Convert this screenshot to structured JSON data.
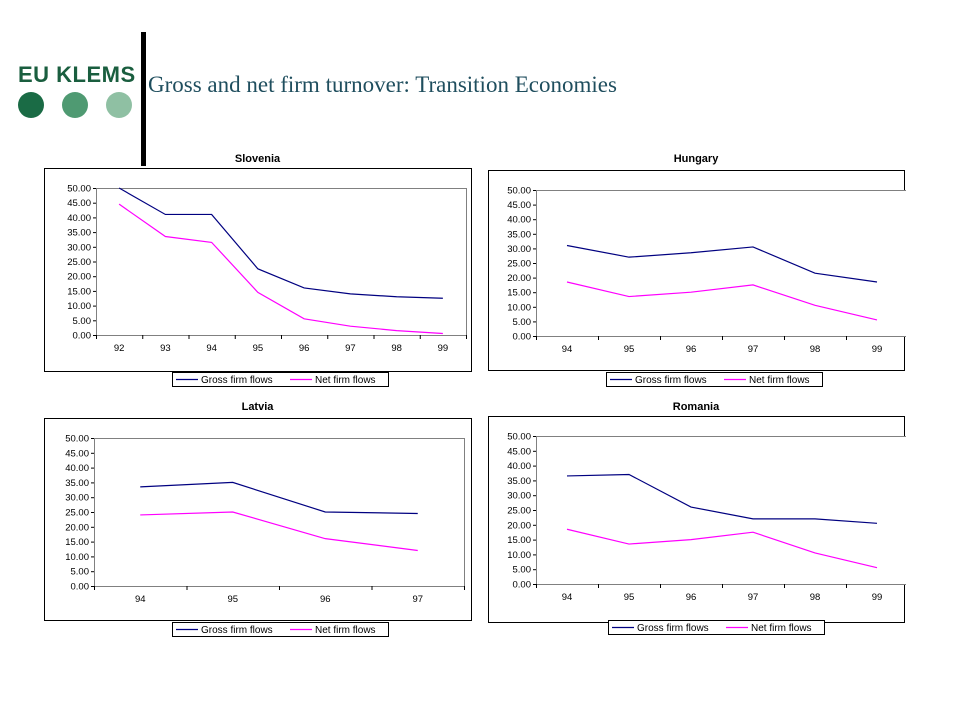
{
  "slide": {
    "title": "Gross and net firm turnover: Transition Economies"
  },
  "logo": {
    "text": "EU KLEMS",
    "colors": [
      "#1a6b45",
      "#4f9a72",
      "#8fc0a3"
    ]
  },
  "colors": {
    "gross": "#000080",
    "net": "#ff00ff",
    "title_text": "#1f4e5e"
  },
  "chart_data": [
    {
      "type": "line",
      "title": "Slovenia",
      "categories": [
        "92",
        "93",
        "94",
        "95",
        "96",
        "97",
        "98",
        "99"
      ],
      "ylim": [
        0,
        50
      ],
      "yticks": [
        "0.00",
        "5.00",
        "10.00",
        "15.00",
        "20.00",
        "25.00",
        "30.00",
        "35.00",
        "40.00",
        "45.00",
        "50.00"
      ],
      "legend_position": "bottom",
      "grid": false,
      "series": [
        {
          "name": "Gross firm flows",
          "values": [
            50,
            41,
            41,
            22.5,
            16,
            14,
            13,
            12.5
          ]
        },
        {
          "name": "Net firm flows",
          "values": [
            44.5,
            33.5,
            31.5,
            14.5,
            5.5,
            3,
            1.5,
            0.5
          ]
        }
      ]
    },
    {
      "type": "line",
      "title": "Hungary",
      "categories": [
        "94",
        "95",
        "96",
        "97",
        "98",
        "99"
      ],
      "ylim": [
        0,
        50
      ],
      "yticks": [
        "0.00",
        "5.00",
        "10.00",
        "15.00",
        "20.00",
        "25.00",
        "30.00",
        "35.00",
        "40.00",
        "45.00",
        "50.00"
      ],
      "legend_position": "bottom",
      "grid": false,
      "series": [
        {
          "name": "Gross firm flows",
          "values": [
            31,
            27,
            28.5,
            30.5,
            21.5,
            18.5
          ]
        },
        {
          "name": "Net firm flows",
          "values": [
            18.5,
            13.5,
            15,
            17.5,
            10.5,
            5.5
          ]
        }
      ]
    },
    {
      "type": "line",
      "title": "Latvia",
      "categories": [
        "94",
        "95",
        "96",
        "97"
      ],
      "ylim": [
        0,
        50
      ],
      "yticks": [
        "0.00",
        "5.00",
        "10.00",
        "15.00",
        "20.00",
        "25.00",
        "30.00",
        "35.00",
        "40.00",
        "45.00",
        "50.00"
      ],
      "legend_position": "bottom",
      "grid": false,
      "series": [
        {
          "name": "Gross firm flows",
          "values": [
            33.5,
            35,
            25,
            24.5
          ]
        },
        {
          "name": "Net firm flows",
          "values": [
            24,
            25,
            16,
            12
          ]
        }
      ]
    },
    {
      "type": "line",
      "title": "Romania",
      "categories": [
        "94",
        "95",
        "96",
        "97",
        "98",
        "99"
      ],
      "ylim": [
        0,
        50
      ],
      "yticks": [
        "0.00",
        "5.00",
        "10.00",
        "15.00",
        "20.00",
        "25.00",
        "30.00",
        "35.00",
        "40.00",
        "45.00",
        "50.00"
      ],
      "legend_position": "bottom",
      "grid": false,
      "series": [
        {
          "name": "Gross firm flows",
          "values": [
            36.5,
            37,
            26,
            22,
            22,
            20.5
          ]
        },
        {
          "name": "Net firm flows",
          "values": [
            18.5,
            13.5,
            15,
            17.5,
            10.5,
            5.5
          ]
        }
      ]
    }
  ]
}
